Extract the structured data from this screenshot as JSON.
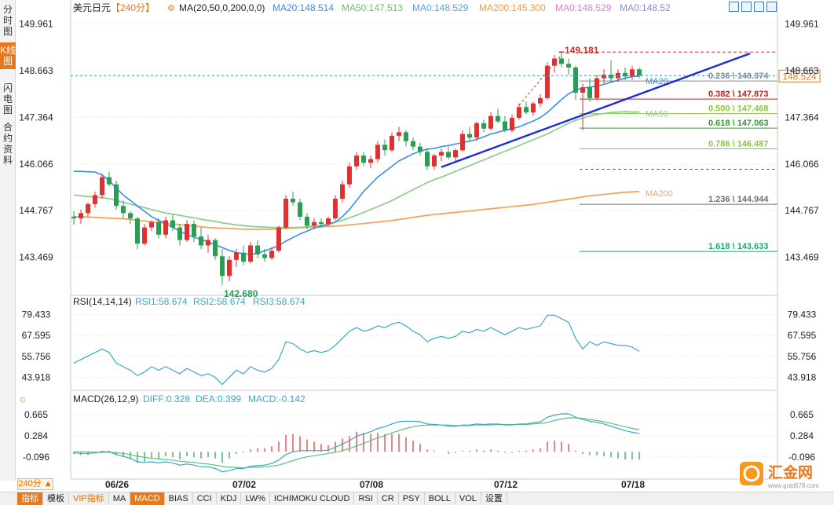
{
  "side_tabs": [
    {
      "label": "分时图",
      "active": false
    },
    {
      "label": "K线图",
      "active": true
    },
    {
      "label": "闪电图",
      "active": false
    },
    {
      "label": "合约资料",
      "active": false
    }
  ],
  "header": {
    "symbol": "美元日元",
    "period": "【240分】",
    "ma_label": "MA(20,50,0,200,0,0)",
    "ma20": "MA20:148.514",
    "ma50": "MA50:147.513",
    "ma0a": "MA0:148.529",
    "ma200": "MA200:145.300",
    "ma0b": "MA0:148.529",
    "ma0c": "MA0:148.52"
  },
  "price_axis_labels": [
    "149.961",
    "148.663",
    "147.364",
    "146.066",
    "144.767",
    "143.469"
  ],
  "current_price": "148.524",
  "fib": [
    {
      "label": "0.236 \\ 148.374",
      "color": "#888888"
    },
    {
      "label": "0.382 \\ 147.873",
      "color": "#c02020"
    },
    {
      "label": "0.500 \\ 147.468",
      "color": "#8cc63f"
    },
    {
      "label": "0.618 \\ 147.063",
      "color": "#2ca02c"
    },
    {
      "label": "0.786 \\ 146.487",
      "color": "#8cc63f"
    },
    {
      "label": "1.236 \\ 144.944",
      "color": "#707070"
    },
    {
      "label": "1.618 \\ 143.633",
      "color": "#22aa66"
    }
  ],
  "high_marker": "149.181",
  "low_marker": "142.680",
  "ma_tags": [
    "MA20",
    "MA50",
    "MA200"
  ],
  "rsi": {
    "title": "RSI(14,14,14)",
    "rsi1": "RSI1:58.674",
    "rsi2": "RSI2:58.674",
    "rsi3": "RSI3:58.674",
    "axis_labels": [
      "79.433",
      "67.595",
      "55.756",
      "43.918"
    ]
  },
  "macd": {
    "title": "MACD(26,12,9)",
    "diff": "DIFF:0.328",
    "dea": "DEA:0.399",
    "macd": "MACD:-0.142",
    "axis_labels": [
      "0.665",
      "0.284",
      "-0.096"
    ]
  },
  "date_labels": [
    "06/26",
    "07/02",
    "07/08",
    "07/12",
    "07/18"
  ],
  "period_selector": "240分",
  "bottom_tabs": [
    {
      "label": "指标",
      "active": true
    },
    {
      "label": "模板",
      "active": false
    },
    {
      "label": "VIP指标",
      "vip": true
    },
    {
      "label": "MA"
    },
    {
      "label": "MACD",
      "active": true
    },
    {
      "label": "BIAS"
    },
    {
      "label": "CCI"
    },
    {
      "label": "KDJ"
    },
    {
      "label": "LW%"
    },
    {
      "label": "ICHIMOKU CLOUD"
    },
    {
      "label": "RSI"
    },
    {
      "label": "CR"
    },
    {
      "label": "PSY"
    },
    {
      "label": "BOLL"
    },
    {
      "label": "VOL"
    },
    {
      "label": "设置"
    }
  ],
  "logo": {
    "text": "汇金网",
    "url": "www.gold678.com"
  },
  "colors": {
    "up": "#e03030",
    "down": "#2a9d55",
    "ma20": "#3a8ee6",
    "ma50": "#8fd08f",
    "ma200": "#f4a460",
    "trendline": "#1b2ad6",
    "rsi": "#3aa8c8",
    "macd_diff": "#3aa8c8",
    "macd_dea": "#5fbf7f",
    "accent": "#e8781c"
  },
  "chart_data": {
    "type": "candlestick",
    "title": "美元日元",
    "timeframe": "240分",
    "ylim": [
      142.5,
      150.3
    ],
    "x_tick_labels": [
      "06/26",
      "07/02",
      "07/08",
      "07/12",
      "07/18"
    ],
    "candles_ohlc": [
      [
        144.6,
        144.75,
        144.38,
        144.55
      ],
      [
        144.55,
        144.8,
        144.4,
        144.7
      ],
      [
        144.7,
        145.0,
        144.6,
        144.95
      ],
      [
        144.95,
        145.3,
        144.85,
        145.2
      ],
      [
        145.2,
        145.8,
        145.1,
        145.7
      ],
      [
        145.7,
        145.85,
        145.45,
        145.5
      ],
      [
        145.5,
        145.6,
        144.8,
        144.9
      ],
      [
        144.9,
        145.05,
        144.55,
        144.7
      ],
      [
        144.7,
        144.75,
        144.4,
        144.55
      ],
      [
        144.55,
        144.6,
        143.7,
        143.85
      ],
      [
        143.85,
        144.4,
        143.8,
        144.3
      ],
      [
        144.3,
        144.5,
        144.2,
        144.45
      ],
      [
        144.45,
        144.55,
        144.0,
        144.1
      ],
      [
        144.1,
        144.6,
        144.0,
        144.5
      ],
      [
        144.5,
        144.65,
        144.2,
        144.3
      ],
      [
        144.3,
        144.4,
        143.8,
        143.95
      ],
      [
        143.95,
        144.5,
        143.9,
        144.4
      ],
      [
        144.4,
        144.5,
        143.9,
        144.05
      ],
      [
        144.05,
        144.3,
        143.7,
        143.8
      ],
      [
        143.8,
        144.1,
        143.6,
        143.95
      ],
      [
        143.95,
        144.0,
        143.4,
        143.5
      ],
      [
        143.5,
        143.7,
        142.7,
        142.95
      ],
      [
        142.95,
        143.5,
        142.8,
        143.4
      ],
      [
        143.4,
        143.7,
        143.2,
        143.6
      ],
      [
        143.6,
        143.8,
        143.25,
        143.35
      ],
      [
        143.35,
        143.9,
        143.3,
        143.8
      ],
      [
        143.8,
        143.95,
        143.45,
        143.55
      ],
      [
        143.55,
        143.7,
        143.35,
        143.45
      ],
      [
        143.45,
        143.75,
        143.4,
        143.65
      ],
      [
        143.65,
        144.35,
        143.6,
        144.3
      ],
      [
        144.3,
        145.2,
        144.25,
        145.1
      ],
      [
        145.1,
        145.3,
        144.9,
        145.0
      ],
      [
        145.0,
        145.1,
        144.5,
        144.6
      ],
      [
        144.6,
        144.7,
        144.25,
        144.35
      ],
      [
        144.35,
        144.55,
        144.25,
        144.45
      ],
      [
        144.45,
        144.55,
        144.3,
        144.4
      ],
      [
        144.4,
        144.6,
        144.35,
        144.55
      ],
      [
        144.55,
        145.2,
        144.5,
        145.1
      ],
      [
        145.1,
        145.6,
        145.0,
        145.5
      ],
      [
        145.5,
        146.1,
        145.4,
        146.0
      ],
      [
        146.0,
        146.4,
        145.9,
        146.3
      ],
      [
        146.3,
        146.4,
        146.0,
        146.1
      ],
      [
        146.1,
        146.3,
        145.95,
        146.2
      ],
      [
        146.2,
        146.7,
        146.1,
        146.6
      ],
      [
        146.6,
        146.75,
        146.3,
        146.45
      ],
      [
        146.45,
        146.95,
        146.4,
        146.85
      ],
      [
        146.85,
        147.1,
        146.7,
        146.95
      ],
      [
        146.95,
        147.0,
        146.55,
        146.7
      ],
      [
        146.7,
        146.8,
        146.45,
        146.55
      ],
      [
        146.55,
        146.65,
        146.3,
        146.4
      ],
      [
        146.4,
        146.5,
        145.9,
        146.0
      ],
      [
        146.0,
        146.35,
        145.9,
        146.3
      ],
      [
        146.3,
        146.5,
        146.15,
        146.4
      ],
      [
        146.4,
        146.55,
        146.2,
        146.25
      ],
      [
        146.25,
        146.5,
        146.15,
        146.45
      ],
      [
        146.45,
        147.0,
        146.4,
        146.9
      ],
      [
        146.9,
        147.1,
        146.7,
        146.8
      ],
      [
        146.8,
        147.25,
        146.7,
        147.2
      ],
      [
        147.2,
        147.3,
        146.95,
        147.05
      ],
      [
        147.05,
        147.5,
        147.0,
        147.4
      ],
      [
        147.4,
        147.6,
        147.2,
        147.25
      ],
      [
        147.25,
        147.4,
        146.95,
        147.0
      ],
      [
        147.0,
        147.45,
        146.95,
        147.35
      ],
      [
        147.35,
        147.75,
        147.3,
        147.65
      ],
      [
        147.65,
        147.8,
        147.45,
        147.5
      ],
      [
        147.5,
        147.8,
        147.4,
        147.75
      ],
      [
        147.75,
        148.0,
        147.65,
        147.9
      ],
      [
        147.9,
        148.9,
        147.85,
        148.8
      ],
      [
        148.8,
        149.1,
        148.6,
        149.0
      ],
      [
        149.0,
        149.18,
        148.75,
        148.85
      ],
      [
        148.85,
        149.0,
        148.55,
        148.75
      ],
      [
        148.75,
        148.8,
        147.85,
        148.05
      ],
      [
        148.05,
        148.3,
        147.0,
        148.2
      ],
      [
        148.2,
        148.45,
        147.8,
        147.9
      ],
      [
        147.9,
        148.55,
        147.85,
        148.45
      ],
      [
        148.45,
        148.7,
        148.3,
        148.55
      ],
      [
        148.55,
        148.95,
        148.35,
        148.45
      ],
      [
        148.45,
        148.7,
        148.35,
        148.6
      ],
      [
        148.6,
        148.75,
        148.4,
        148.5
      ],
      [
        148.5,
        148.8,
        148.4,
        148.7
      ],
      [
        148.7,
        148.75,
        148.45,
        148.52
      ]
    ],
    "ma20_values": [
      145.86,
      145.86,
      145.85,
      145.84,
      145.76,
      145.6,
      145.4,
      145.2,
      145.05,
      144.9,
      144.75,
      144.6,
      144.5,
      144.4,
      144.3,
      144.2,
      144.1,
      144.03,
      143.97,
      143.9,
      143.82,
      143.74,
      143.66,
      143.6,
      143.57,
      143.55,
      143.58,
      143.65,
      143.72,
      143.8,
      143.92,
      144.02,
      144.12,
      144.2,
      144.28,
      144.33,
      144.38,
      144.45,
      144.6,
      144.8,
      145.05,
      145.3,
      145.5,
      145.7,
      145.85,
      146.0,
      146.15,
      146.25,
      146.35,
      146.42,
      146.48,
      146.5,
      146.55,
      146.58,
      146.62,
      146.66,
      146.7,
      146.75,
      146.82,
      146.9,
      146.95,
      147.0,
      147.05,
      147.1,
      147.18,
      147.26,
      147.36,
      147.5,
      147.68,
      147.86,
      148.02,
      148.12,
      148.18,
      148.2,
      148.24,
      148.28,
      148.34,
      148.4,
      148.45,
      148.5,
      148.51
    ],
    "ma50_values": [
      145.2,
      145.18,
      145.16,
      145.15,
      145.13,
      145.1,
      145.05,
      145.0,
      144.95,
      144.9,
      144.85,
      144.8,
      144.75,
      144.7,
      144.67,
      144.64,
      144.6,
      144.57,
      144.53,
      144.5,
      144.47,
      144.43,
      144.4,
      144.37,
      144.35,
      144.33,
      144.32,
      144.31,
      144.3,
      144.3,
      144.3,
      144.3,
      144.3,
      144.32,
      144.34,
      144.36,
      144.4,
      144.45,
      144.5,
      144.57,
      144.64,
      144.72,
      144.8,
      144.88,
      144.96,
      145.05,
      145.15,
      145.25,
      145.35,
      145.45,
      145.55,
      145.63,
      145.7,
      145.78,
      145.86,
      145.94,
      146.02,
      146.1,
      146.18,
      146.26,
      146.34,
      146.42,
      146.5,
      146.58,
      146.66,
      146.74,
      146.82,
      146.9,
      147.0,
      147.1,
      147.2,
      147.28,
      147.34,
      147.4,
      147.44,
      147.47,
      147.5,
      147.51,
      147.52,
      147.51,
      147.51
    ],
    "ma200_values": [
      144.6,
      144.6,
      144.59,
      144.58,
      144.57,
      144.56,
      144.55,
      144.54,
      144.52,
      144.5,
      144.48,
      144.46,
      144.44,
      144.42,
      144.4,
      144.38,
      144.36,
      144.34,
      144.32,
      144.3,
      144.29,
      144.28,
      144.27,
      144.26,
      144.25,
      144.25,
      144.25,
      144.25,
      144.25,
      144.26,
      144.27,
      144.28,
      144.29,
      144.3,
      144.31,
      144.32,
      144.33,
      144.34,
      144.35,
      144.37,
      144.39,
      144.41,
      144.43,
      144.45,
      144.47,
      144.49,
      144.52,
      144.55,
      144.58,
      144.61,
      144.64,
      144.66,
      144.68,
      144.7,
      144.72,
      144.74,
      144.76,
      144.78,
      144.8,
      144.82,
      144.84,
      144.86,
      144.88,
      144.9,
      144.92,
      144.94,
      144.97,
      145.0,
      145.03,
      145.06,
      145.09,
      145.12,
      145.15,
      145.18,
      145.2,
      145.22,
      145.24,
      145.26,
      145.28,
      145.29,
      145.3
    ],
    "fibonacci_levels": [
      {
        "ratio": 0.236,
        "value": 148.374
      },
      {
        "ratio": 0.382,
        "value": 147.873
      },
      {
        "ratio": 0.5,
        "value": 147.468
      },
      {
        "ratio": 0.618,
        "value": 147.063
      },
      {
        "ratio": 0.786,
        "value": 146.487
      },
      {
        "ratio": 1.236,
        "value": 144.944
      },
      {
        "ratio": 1.618,
        "value": 143.633
      }
    ],
    "marked_high": 149.181,
    "marked_low": 142.68,
    "last_price": 148.524,
    "rsi_ylim": [
      38,
      84
    ],
    "rsi_values": [
      52,
      54,
      56,
      58,
      60,
      58,
      52,
      50,
      48,
      45,
      47,
      50,
      48,
      50,
      48,
      46,
      49,
      47,
      45,
      46,
      44,
      40,
      44,
      48,
      46,
      50,
      48,
      47,
      49,
      54,
      64,
      63,
      60,
      58,
      59,
      58,
      59,
      62,
      66,
      70,
      72,
      70,
      71,
      73,
      72,
      74,
      75,
      73,
      70,
      68,
      64,
      66,
      67,
      66,
      67,
      70,
      69,
      71,
      70,
      72,
      70,
      68,
      70,
      72,
      71,
      72,
      73,
      79,
      79,
      77,
      75,
      66,
      60,
      64,
      62,
      64,
      63,
      62,
      62,
      61,
      58.674
    ],
    "macd_ylim": [
      -0.35,
      0.85
    ],
    "macd_diff_values": [
      -0.02,
      -0.03,
      -0.03,
      -0.02,
      0.0,
      0.0,
      -0.05,
      -0.08,
      -0.12,
      -0.18,
      -0.19,
      -0.18,
      -0.2,
      -0.18,
      -0.2,
      -0.24,
      -0.22,
      -0.24,
      -0.27,
      -0.27,
      -0.3,
      -0.36,
      -0.34,
      -0.3,
      -0.3,
      -0.26,
      -0.25,
      -0.24,
      -0.21,
      -0.15,
      -0.05,
      0.0,
      0.02,
      0.02,
      0.02,
      0.02,
      0.03,
      0.08,
      0.14,
      0.2,
      0.28,
      0.32,
      0.36,
      0.42,
      0.45,
      0.5,
      0.54,
      0.55,
      0.55,
      0.54,
      0.5,
      0.49,
      0.48,
      0.46,
      0.46,
      0.48,
      0.48,
      0.5,
      0.49,
      0.5,
      0.5,
      0.48,
      0.48,
      0.5,
      0.5,
      0.52,
      0.54,
      0.62,
      0.66,
      0.68,
      0.68,
      0.62,
      0.58,
      0.55,
      0.53,
      0.5,
      0.46,
      0.42,
      0.38,
      0.35,
      0.328
    ],
    "macd_dea_values": [
      0.0,
      0.0,
      0.0,
      -0.01,
      -0.01,
      -0.01,
      -0.02,
      -0.03,
      -0.05,
      -0.08,
      -0.1,
      -0.12,
      -0.13,
      -0.14,
      -0.15,
      -0.17,
      -0.18,
      -0.19,
      -0.21,
      -0.22,
      -0.24,
      -0.26,
      -0.28,
      -0.28,
      -0.29,
      -0.28,
      -0.28,
      -0.27,
      -0.26,
      -0.24,
      -0.2,
      -0.16,
      -0.12,
      -0.09,
      -0.07,
      -0.05,
      -0.03,
      -0.01,
      0.02,
      0.06,
      0.1,
      0.15,
      0.2,
      0.25,
      0.29,
      0.34,
      0.38,
      0.42,
      0.45,
      0.47,
      0.48,
      0.48,
      0.48,
      0.48,
      0.47,
      0.47,
      0.47,
      0.48,
      0.48,
      0.48,
      0.49,
      0.49,
      0.49,
      0.49,
      0.49,
      0.5,
      0.51,
      0.53,
      0.56,
      0.59,
      0.61,
      0.61,
      0.6,
      0.58,
      0.56,
      0.54,
      0.51,
      0.48,
      0.45,
      0.42,
      0.399
    ]
  }
}
